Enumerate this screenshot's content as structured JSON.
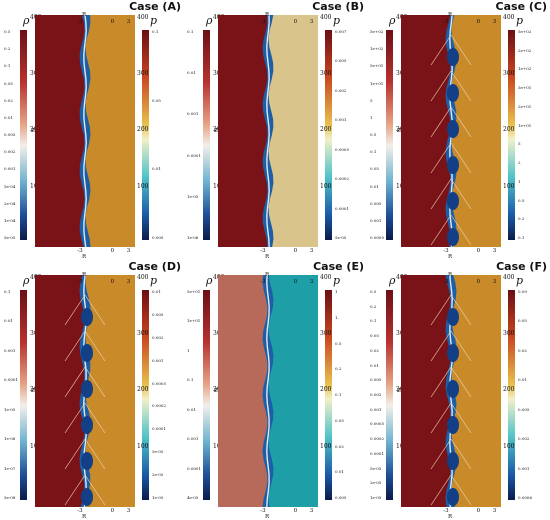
{
  "panels": [
    {
      "title": "Case (A)",
      "rho": "ρ",
      "p": "p",
      "z_label": "z",
      "r_label": "R",
      "z_ticks": [
        "400",
        "300",
        "200",
        "100"
      ],
      "r_ticks": [
        "-3",
        "0",
        "3"
      ],
      "rho_ticks": [
        "0.5",
        "0.2",
        "0.1",
        "0.05",
        "0.02",
        "0.01",
        "0.005",
        "0.002",
        "0.001",
        "5e-04",
        "2e-04",
        "1e-04",
        "5e-05"
      ],
      "p_ticks": [
        "0.1",
        "0.05",
        "0.01",
        "0.005"
      ],
      "colors": {
        "left": "#7a1318",
        "right": "#c98a2a"
      }
    },
    {
      "title": "Case (B)",
      "rho": "ρ",
      "p": "p",
      "z_label": "z",
      "r_label": "R",
      "z_ticks": [
        "400",
        "300",
        "200",
        "100"
      ],
      "r_ticks": [
        "-3",
        "0",
        "3"
      ],
      "rho_ticks": [
        "0.1",
        "0.01",
        "0.001",
        "0.0001",
        "1e-05",
        "1e-06"
      ],
      "p_ticks": [
        "0.007",
        "0.005",
        "0.002",
        "0.001",
        "0.0005",
        "0.0002",
        "0.0001",
        "5e-05"
      ],
      "colors": {
        "left": "#7a1318",
        "right": "#d9c48c"
      }
    },
    {
      "title": "Case (C)",
      "rho": "ρ",
      "p": "p",
      "z_label": "z",
      "r_label": "R",
      "z_ticks": [
        "400",
        "300",
        "200",
        "100"
      ],
      "r_ticks": [
        "-3",
        "0",
        "3"
      ],
      "rho_ticks": [
        "5e+02",
        "1e+02",
        "5e+01",
        "1e+01",
        "5",
        "1",
        "0.5",
        "0.1",
        "0.05",
        "0.01",
        "0.005",
        "0.001",
        "0.0005"
      ],
      "p_ticks": [
        "5e+02",
        "2e+02",
        "1e+02",
        "5e+01",
        "2e+01",
        "1e+01",
        "5",
        "2",
        "1",
        "0.5",
        "0.2",
        "0.1"
      ],
      "colors": {
        "left": "#7a1318",
        "right": "#c98a2a"
      }
    },
    {
      "title": "Case (D)",
      "rho": "ρ",
      "p": "p",
      "z_label": "z",
      "r_label": "R",
      "z_ticks": [
        "400",
        "300",
        "200",
        "100"
      ],
      "r_ticks": [
        "-3",
        "0",
        "3"
      ],
      "rho_ticks": [
        "0.1",
        "0.01",
        "0.001",
        "0.0001",
        "1e-05",
        "1e-06",
        "1e-07",
        "5e-08"
      ],
      "p_ticks": [
        "0.01",
        "0.005",
        "0.002",
        "0.001",
        "0.0005",
        "0.0002",
        "0.0001",
        "5e-05",
        "2e-05",
        "1e-05"
      ],
      "colors": {
        "left": "#7a1318",
        "right": "#c98a2a"
      }
    },
    {
      "title": "Case (E)",
      "rho": "ρ",
      "p": "p",
      "z_label": "z",
      "r_label": "R",
      "z_ticks": [
        "400",
        "300",
        "200",
        "100"
      ],
      "r_ticks": [
        "-3",
        "0",
        "3"
      ],
      "rho_ticks": [
        "5e+01",
        "1e+01",
        "1",
        "0.1",
        "0.01",
        "0.001",
        "0.0001",
        "4e-05"
      ],
      "p_ticks": [
        "1",
        "1.",
        "0.5",
        "0.2",
        "0.1",
        "0.05",
        "0.02",
        "0.01",
        "0.005"
      ],
      "colors": {
        "left": "#b86a5a",
        "right": "#1e9ea6"
      }
    },
    {
      "title": "Case (F)",
      "rho": "ρ",
      "p": "p",
      "z_label": "z",
      "r_label": "R",
      "z_ticks": [
        "400",
        "300",
        "200",
        "100"
      ],
      "r_ticks": [
        "-3",
        "0",
        "3"
      ],
      "rho_ticks": [
        "0.5",
        "0.2",
        "0.1",
        "0.05",
        "0.02",
        "0.01",
        "0.005",
        "0.002",
        "0.001",
        "0.0005",
        "0.0002",
        "0.0001",
        "5e-05",
        "2e-05",
        "1e-05"
      ],
      "p_ticks": [
        "0.09",
        "0.05",
        "0.02",
        "0.01",
        "0.005",
        "0.002",
        "0.001",
        "0.0006"
      ],
      "colors": {
        "left": "#7a1318",
        "right": "#c98a2a"
      }
    }
  ]
}
